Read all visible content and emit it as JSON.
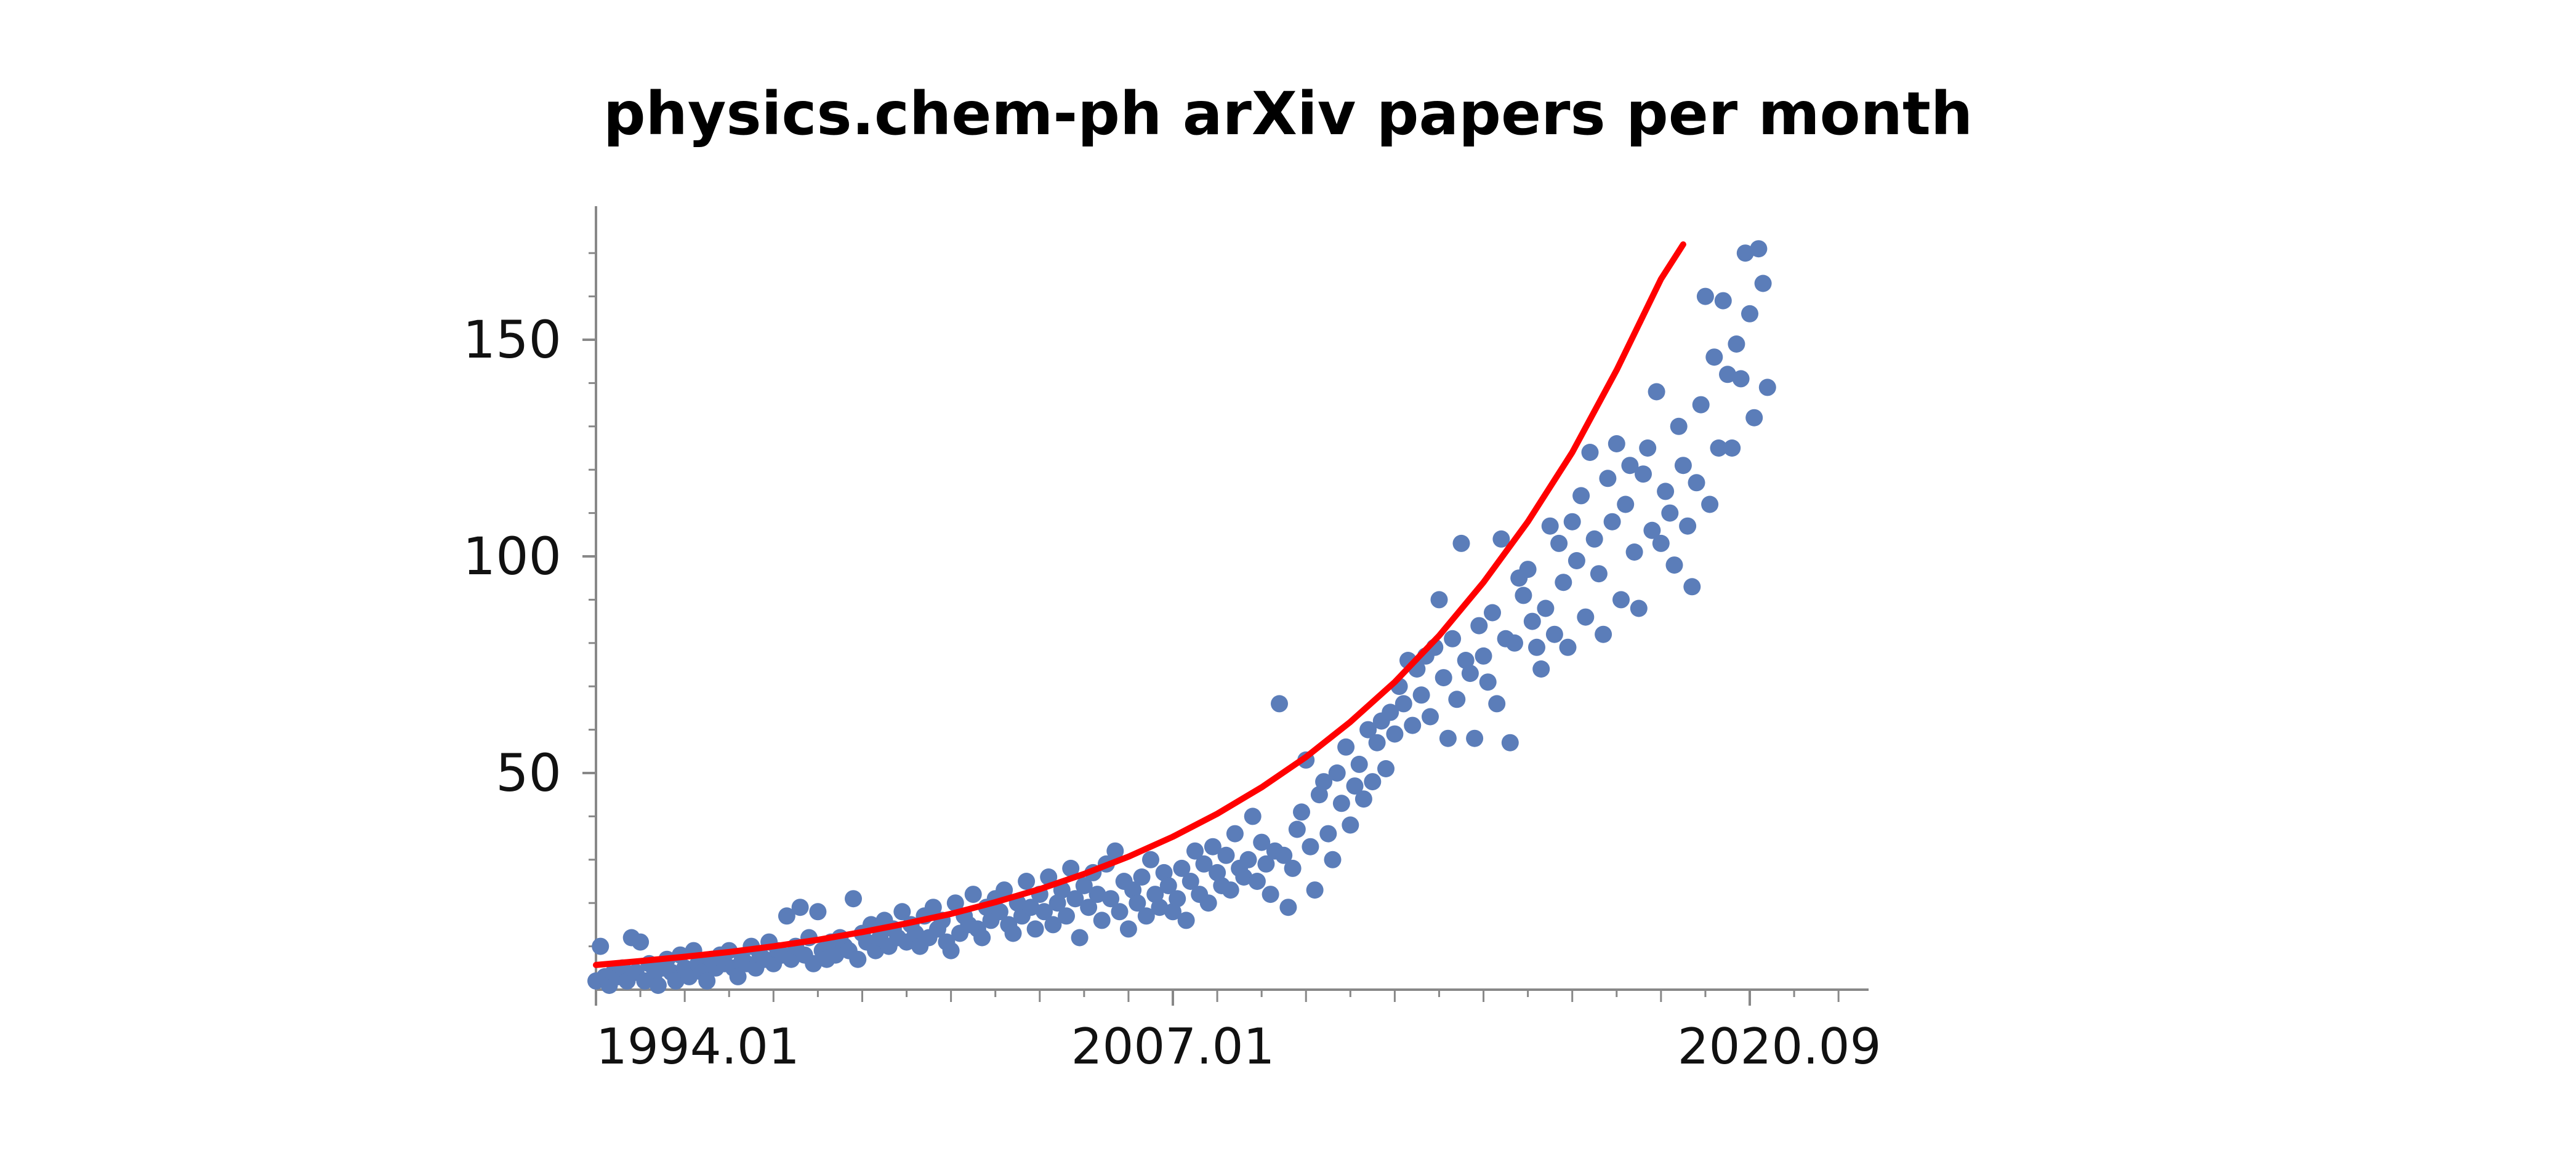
{
  "chart_data": {
    "type": "scatter",
    "title": "physics.chem-ph arXiv papers per month",
    "xlabel": "",
    "ylabel": "",
    "x_ticks": [
      {
        "value": 1994.0,
        "label": "1994.01"
      },
      {
        "value": 2007.0,
        "label": "2007.01"
      },
      {
        "value": 2020.667,
        "label": "2020.09"
      }
    ],
    "y_ticks": [
      50,
      100,
      150
    ],
    "xlim": [
      1994.0,
      2022.5
    ],
    "ylim": [
      0,
      180
    ],
    "grid": false,
    "legend": "none",
    "colors": {
      "points": "#5B7DB9",
      "fit": "#FF0000",
      "axis": "#888888"
    },
    "series": [
      {
        "kind": "points",
        "data": [
          [
            1994.0,
            2
          ],
          [
            1994.1,
            10
          ],
          [
            1994.2,
            3
          ],
          [
            1994.3,
            1
          ],
          [
            1994.4,
            4
          ],
          [
            1994.5,
            3
          ],
          [
            1994.6,
            5
          ],
          [
            1994.7,
            2
          ],
          [
            1994.8,
            12
          ],
          [
            1994.9,
            4
          ],
          [
            1995.0,
            11
          ],
          [
            1995.1,
            2
          ],
          [
            1995.2,
            6
          ],
          [
            1995.3,
            3
          ],
          [
            1995.4,
            1
          ],
          [
            1995.5,
            5
          ],
          [
            1995.6,
            7
          ],
          [
            1995.7,
            4
          ],
          [
            1995.8,
            2
          ],
          [
            1995.9,
            8
          ],
          [
            1996.0,
            5
          ],
          [
            1996.1,
            3
          ],
          [
            1996.2,
            9
          ],
          [
            1996.3,
            6
          ],
          [
            1996.4,
            4
          ],
          [
            1996.5,
            2
          ],
          [
            1996.6,
            7
          ],
          [
            1996.7,
            5
          ],
          [
            1996.8,
            8
          ],
          [
            1996.9,
            6
          ],
          [
            1997.0,
            9
          ],
          [
            1997.1,
            5
          ],
          [
            1997.2,
            3
          ],
          [
            1997.3,
            7
          ],
          [
            1997.4,
            6
          ],
          [
            1997.5,
            10
          ],
          [
            1997.6,
            5
          ],
          [
            1997.7,
            8
          ],
          [
            1997.8,
            7
          ],
          [
            1997.9,
            11
          ],
          [
            1998.0,
            6
          ],
          [
            1998.1,
            9
          ],
          [
            1998.2,
            8
          ],
          [
            1998.3,
            17
          ],
          [
            1998.4,
            7
          ],
          [
            1998.5,
            10
          ],
          [
            1998.6,
            19
          ],
          [
            1998.7,
            8
          ],
          [
            1998.8,
            12
          ],
          [
            1998.9,
            6
          ],
          [
            1999.0,
            18
          ],
          [
            1999.1,
            9
          ],
          [
            1999.2,
            7
          ],
          [
            1999.3,
            11
          ],
          [
            1999.4,
            8
          ],
          [
            1999.5,
            12
          ],
          [
            1999.6,
            10
          ],
          [
            1999.7,
            9
          ],
          [
            1999.8,
            21
          ],
          [
            1999.9,
            7
          ],
          [
            2000.0,
            13
          ],
          [
            2000.1,
            11
          ],
          [
            2000.2,
            15
          ],
          [
            2000.3,
            9
          ],
          [
            2000.4,
            12
          ],
          [
            2000.5,
            16
          ],
          [
            2000.6,
            10
          ],
          [
            2000.7,
            14
          ],
          [
            2000.8,
            12
          ],
          [
            2000.9,
            18
          ],
          [
            2001.0,
            11
          ],
          [
            2001.1,
            15
          ],
          [
            2001.2,
            13
          ],
          [
            2001.3,
            10
          ],
          [
            2001.4,
            17
          ],
          [
            2001.5,
            12
          ],
          [
            2001.6,
            19
          ],
          [
            2001.7,
            14
          ],
          [
            2001.8,
            16
          ],
          [
            2001.9,
            11
          ],
          [
            2002.0,
            9
          ],
          [
            2002.1,
            20
          ],
          [
            2002.2,
            13
          ],
          [
            2002.3,
            17
          ],
          [
            2002.4,
            15
          ],
          [
            2002.5,
            22
          ],
          [
            2002.6,
            14
          ],
          [
            2002.7,
            12
          ],
          [
            2002.8,
            19
          ],
          [
            2002.9,
            16
          ],
          [
            2003.0,
            21
          ],
          [
            2003.1,
            18
          ],
          [
            2003.2,
            23
          ],
          [
            2003.3,
            15
          ],
          [
            2003.4,
            13
          ],
          [
            2003.5,
            20
          ],
          [
            2003.6,
            17
          ],
          [
            2003.7,
            25
          ],
          [
            2003.8,
            19
          ],
          [
            2003.9,
            14
          ],
          [
            2004.0,
            22
          ],
          [
            2004.1,
            18
          ],
          [
            2004.2,
            26
          ],
          [
            2004.3,
            15
          ],
          [
            2004.4,
            20
          ],
          [
            2004.5,
            23
          ],
          [
            2004.6,
            17
          ],
          [
            2004.7,
            28
          ],
          [
            2004.8,
            21
          ],
          [
            2004.9,
            12
          ],
          [
            2005.0,
            24
          ],
          [
            2005.1,
            19
          ],
          [
            2005.2,
            27
          ],
          [
            2005.3,
            22
          ],
          [
            2005.4,
            16
          ],
          [
            2005.5,
            29
          ],
          [
            2005.6,
            21
          ],
          [
            2005.7,
            32
          ],
          [
            2005.8,
            18
          ],
          [
            2005.9,
            25
          ],
          [
            2006.0,
            14
          ],
          [
            2006.1,
            23
          ],
          [
            2006.2,
            20
          ],
          [
            2006.3,
            26
          ],
          [
            2006.4,
            17
          ],
          [
            2006.5,
            30
          ],
          [
            2006.6,
            22
          ],
          [
            2006.7,
            19
          ],
          [
            2006.8,
            27
          ],
          [
            2006.9,
            24
          ],
          [
            2007.0,
            18
          ],
          [
            2007.1,
            21
          ],
          [
            2007.2,
            28
          ],
          [
            2007.3,
            16
          ],
          [
            2007.4,
            25
          ],
          [
            2007.5,
            32
          ],
          [
            2007.6,
            22
          ],
          [
            2007.7,
            29
          ],
          [
            2007.8,
            20
          ],
          [
            2007.9,
            33
          ],
          [
            2008.0,
            27
          ],
          [
            2008.1,
            24
          ],
          [
            2008.2,
            31
          ],
          [
            2008.3,
            23
          ],
          [
            2008.4,
            36
          ],
          [
            2008.5,
            28
          ],
          [
            2008.6,
            26
          ],
          [
            2008.7,
            30
          ],
          [
            2008.8,
            40
          ],
          [
            2008.9,
            25
          ],
          [
            2009.0,
            34
          ],
          [
            2009.1,
            29
          ],
          [
            2009.2,
            22
          ],
          [
            2009.3,
            32
          ],
          [
            2009.4,
            66
          ],
          [
            2009.5,
            31
          ],
          [
            2009.6,
            19
          ],
          [
            2009.7,
            28
          ],
          [
            2009.8,
            37
          ],
          [
            2009.9,
            41
          ],
          [
            2010.0,
            53
          ],
          [
            2010.1,
            33
          ],
          [
            2010.2,
            23
          ],
          [
            2010.3,
            45
          ],
          [
            2010.4,
            48
          ],
          [
            2010.5,
            36
          ],
          [
            2010.6,
            30
          ],
          [
            2010.7,
            50
          ],
          [
            2010.8,
            43
          ],
          [
            2010.9,
            56
          ],
          [
            2011.0,
            38
          ],
          [
            2011.1,
            47
          ],
          [
            2011.2,
            52
          ],
          [
            2011.3,
            44
          ],
          [
            2011.4,
            60
          ],
          [
            2011.5,
            48
          ],
          [
            2011.6,
            57
          ],
          [
            2011.7,
            62
          ],
          [
            2011.8,
            51
          ],
          [
            2011.9,
            64
          ],
          [
            2012.0,
            59
          ],
          [
            2012.1,
            70
          ],
          [
            2012.2,
            66
          ],
          [
            2012.3,
            76
          ],
          [
            2012.4,
            61
          ],
          [
            2012.5,
            74
          ],
          [
            2012.6,
            68
          ],
          [
            2012.7,
            77
          ],
          [
            2012.8,
            63
          ],
          [
            2012.9,
            79
          ],
          [
            2013.0,
            90
          ],
          [
            2013.1,
            72
          ],
          [
            2013.2,
            58
          ],
          [
            2013.3,
            81
          ],
          [
            2013.4,
            67
          ],
          [
            2013.5,
            103
          ],
          [
            2013.6,
            76
          ],
          [
            2013.7,
            73
          ],
          [
            2013.8,
            58
          ],
          [
            2013.9,
            84
          ],
          [
            2014.0,
            77
          ],
          [
            2014.1,
            71
          ],
          [
            2014.2,
            87
          ],
          [
            2014.3,
            66
          ],
          [
            2014.4,
            104
          ],
          [
            2014.5,
            81
          ],
          [
            2014.6,
            57
          ],
          [
            2014.7,
            80
          ],
          [
            2014.8,
            95
          ],
          [
            2014.9,
            91
          ],
          [
            2015.0,
            97
          ],
          [
            2015.1,
            85
          ],
          [
            2015.2,
            79
          ],
          [
            2015.3,
            74
          ],
          [
            2015.4,
            88
          ],
          [
            2015.5,
            107
          ],
          [
            2015.6,
            82
          ],
          [
            2015.7,
            103
          ],
          [
            2015.8,
            94
          ],
          [
            2015.9,
            79
          ],
          [
            2016.0,
            108
          ],
          [
            2016.1,
            99
          ],
          [
            2016.2,
            114
          ],
          [
            2016.3,
            86
          ],
          [
            2016.4,
            124
          ],
          [
            2016.5,
            104
          ],
          [
            2016.6,
            96
          ],
          [
            2016.7,
            82
          ],
          [
            2016.8,
            118
          ],
          [
            2016.9,
            108
          ],
          [
            2017.0,
            126
          ],
          [
            2017.1,
            90
          ],
          [
            2017.2,
            112
          ],
          [
            2017.3,
            121
          ],
          [
            2017.4,
            101
          ],
          [
            2017.5,
            88
          ],
          [
            2017.6,
            119
          ],
          [
            2017.7,
            125
          ],
          [
            2017.8,
            106
          ],
          [
            2017.9,
            138
          ],
          [
            2018.0,
            103
          ],
          [
            2018.1,
            115
          ],
          [
            2018.2,
            110
          ],
          [
            2018.3,
            98
          ],
          [
            2018.4,
            130
          ],
          [
            2018.5,
            121
          ],
          [
            2018.6,
            107
          ],
          [
            2018.7,
            93
          ],
          [
            2018.8,
            117
          ],
          [
            2018.9,
            135
          ],
          [
            2019.0,
            160
          ],
          [
            2019.1,
            112
          ],
          [
            2019.2,
            146
          ],
          [
            2019.3,
            125
          ],
          [
            2019.4,
            159
          ],
          [
            2019.5,
            142
          ],
          [
            2019.6,
            125
          ],
          [
            2019.7,
            149
          ],
          [
            2019.8,
            141
          ],
          [
            2019.9,
            170
          ],
          [
            2020.0,
            156
          ],
          [
            2020.1,
            132
          ],
          [
            2020.2,
            171
          ],
          [
            2020.3,
            163
          ],
          [
            2020.4,
            139
          ]
        ]
      },
      {
        "kind": "fit",
        "data": [
          [
            1994.0,
            5.7
          ],
          [
            1995.0,
            6.6
          ],
          [
            1996.0,
            7.6
          ],
          [
            1997.0,
            8.7
          ],
          [
            1998.0,
            10.0
          ],
          [
            1999.0,
            11.5
          ],
          [
            2000.0,
            13.3
          ],
          [
            2001.0,
            15.3
          ],
          [
            2002.0,
            17.5
          ],
          [
            2003.0,
            20.2
          ],
          [
            2004.0,
            23.2
          ],
          [
            2005.0,
            26.7
          ],
          [
            2006.0,
            30.7
          ],
          [
            2007.0,
            35.3
          ],
          [
            2008.0,
            40.6
          ],
          [
            2009.0,
            46.7
          ],
          [
            2010.0,
            53.7
          ],
          [
            2011.0,
            61.8
          ],
          [
            2012.0,
            71.0
          ],
          [
            2013.0,
            81.7
          ],
          [
            2014.0,
            94.0
          ],
          [
            2015.0,
            108.0
          ],
          [
            2016.0,
            124.0
          ],
          [
            2017.0,
            143.0
          ],
          [
            2018.0,
            164.0
          ],
          [
            2018.5,
            172.0
          ]
        ]
      }
    ]
  }
}
